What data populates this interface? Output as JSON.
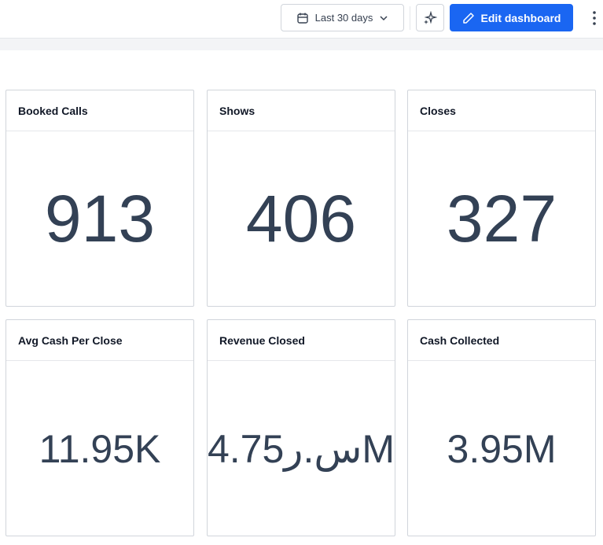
{
  "toolbar": {
    "date_range": "Last 30 days",
    "edit_button": "Edit dashboard"
  },
  "cards": [
    {
      "title": "Booked Calls",
      "value": "913"
    },
    {
      "title": "Shows",
      "value": "406"
    },
    {
      "title": "Closes",
      "value": "327"
    },
    {
      "title": "Avg Cash Per Close",
      "value": "11.95K"
    },
    {
      "title": "Revenue Closed",
      "value": "4.75ر.سM"
    },
    {
      "title": "Cash Collected",
      "value": "3.95M"
    }
  ]
}
